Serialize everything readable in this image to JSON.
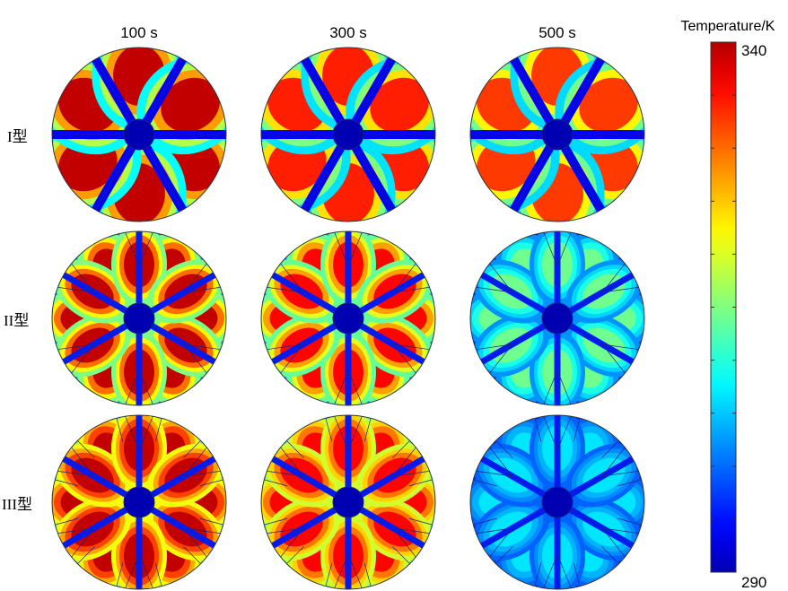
{
  "columns": [
    "100 s",
    "300 s",
    "500 s"
  ],
  "rows": [
    "I型",
    "II型",
    "III型"
  ],
  "colorbar": {
    "title": "Temperature/K",
    "max_label": "340",
    "min_label": "290",
    "min_value": 290,
    "max_value": 340,
    "colormap": "jet"
  },
  "fields": [
    [
      {
        "level": 0.95,
        "plate_level": 0.0,
        "channel": "hot",
        "geometry": "I"
      },
      {
        "level": 0.85,
        "plate_level": 0.0,
        "channel": "wide",
        "geometry": "I"
      },
      {
        "level": 0.82,
        "plate_level": 0.0,
        "channel": "wide",
        "geometry": "I"
      }
    ],
    [
      {
        "level": 0.95,
        "plate_level": 0.2,
        "channel": "hot",
        "geometry": "II"
      },
      {
        "level": 0.88,
        "plate_level": 0.2,
        "channel": "mid",
        "geometry": "II"
      },
      {
        "level": 0.45,
        "plate_level": 0.08,
        "channel": "cool",
        "geometry": "II"
      }
    ],
    [
      {
        "level": 0.95,
        "plate_level": 0.4,
        "channel": "hot",
        "geometry": "III"
      },
      {
        "level": 0.88,
        "plate_level": 0.38,
        "channel": "mid",
        "geometry": "III"
      },
      {
        "level": 0.3,
        "plate_level": 0.08,
        "channel": "cool",
        "geometry": "III"
      }
    ]
  ]
}
